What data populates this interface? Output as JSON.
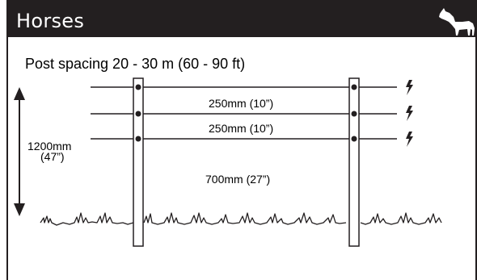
{
  "header": {
    "title": "Horses",
    "icon": "horse-icon",
    "background": "#231f20",
    "text_color": "#ffffff"
  },
  "diagram": {
    "post_spacing": "Post spacing 20 - 30 m (60 - 90 ft)",
    "wire_gap_top": "250mm (10”)",
    "wire_gap_middle": "250mm (10”)",
    "wire_gap_bottom": "700mm (27”)",
    "total_height_line1": "1200mm",
    "total_height_line2": "(47”)",
    "electric_wire_icon": "lightning-bolt-icon",
    "ground_icon": "grass-icon",
    "wire_count": 3,
    "post_count": 2
  }
}
